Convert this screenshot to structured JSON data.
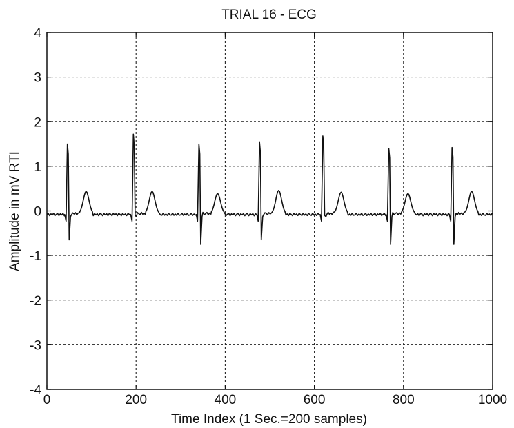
{
  "chart_data": {
    "type": "line",
    "title": "TRIAL 16 - ECG",
    "xlabel": "Time Index (1 Sec.=200 samples)",
    "ylabel": "Amplitude in mV RTI",
    "xlim": [
      0,
      1000
    ],
    "ylim": [
      -4,
      4
    ],
    "xticks": [
      0,
      200,
      400,
      600,
      800,
      1000
    ],
    "yticks": [
      -4,
      -3,
      -2,
      -1,
      0,
      1,
      2,
      3,
      4
    ],
    "grid": true,
    "line_color": "#111111",
    "baseline": -0.08,
    "beats": [
      {
        "r_index": 47,
        "r_peak": 1.5,
        "s_trough": -0.65,
        "t_index": 88,
        "t_peak": 0.42
      },
      {
        "r_index": 195,
        "r_peak": 1.72,
        "s_trough": -0.1,
        "t_index": 236,
        "t_peak": 0.42
      },
      {
        "r_index": 342,
        "r_peak": 1.5,
        "s_trough": -0.75,
        "t_index": 383,
        "t_peak": 0.37
      },
      {
        "r_index": 478,
        "r_peak": 1.55,
        "s_trough": -0.65,
        "t_index": 520,
        "t_peak": 0.44
      },
      {
        "r_index": 620,
        "r_peak": 1.68,
        "s_trough": -0.1,
        "t_index": 660,
        "t_peak": 0.4
      },
      {
        "r_index": 768,
        "r_peak": 1.4,
        "s_trough": -0.75,
        "t_index": 810,
        "t_peak": 0.37
      },
      {
        "r_index": 910,
        "r_peak": 1.42,
        "s_trough": -0.75,
        "t_index": 953,
        "t_peak": 0.42
      }
    ]
  }
}
